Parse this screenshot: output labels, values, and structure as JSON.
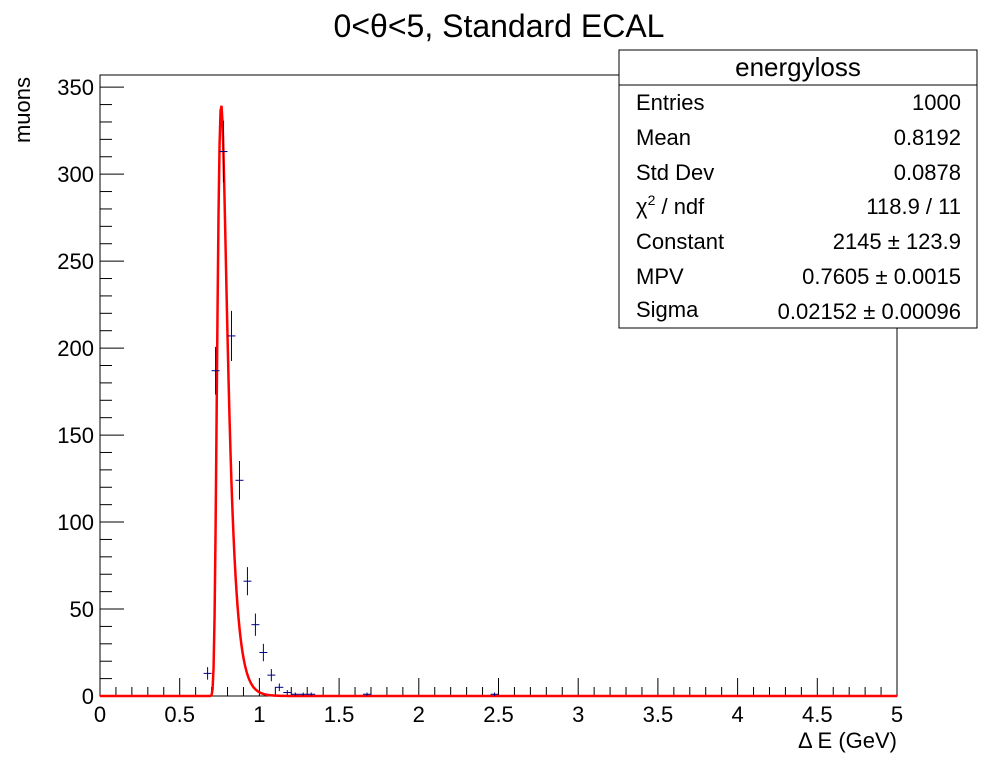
{
  "chart_data": {
    "type": "histogram",
    "title": "0<θ<5, Standard ECAL",
    "xlabel": "Δ E (GeV)",
    "ylabel": "muons",
    "xlim": [
      0,
      5
    ],
    "ylim": [
      0,
      357
    ],
    "x_ticks": [
      "0",
      "0.5",
      "1",
      "1.5",
      "2",
      "2.5",
      "3",
      "3.5",
      "4",
      "4.5",
      "5"
    ],
    "y_ticks": [
      "0",
      "50",
      "100",
      "150",
      "200",
      "250",
      "300",
      "350"
    ],
    "bin_width": 0.05,
    "data_points": [
      {
        "x": 0.675,
        "y": 13,
        "err": 3.6
      },
      {
        "x": 0.725,
        "y": 187,
        "err": 13.7
      },
      {
        "x": 0.775,
        "y": 313,
        "err": 17.7
      },
      {
        "x": 0.825,
        "y": 207,
        "err": 14.4
      },
      {
        "x": 0.875,
        "y": 124,
        "err": 11.1
      },
      {
        "x": 0.925,
        "y": 66,
        "err": 8.1
      },
      {
        "x": 0.975,
        "y": 41,
        "err": 6.4
      },
      {
        "x": 1.025,
        "y": 25,
        "err": 5.0
      },
      {
        "x": 1.075,
        "y": 12,
        "err": 3.5
      },
      {
        "x": 1.125,
        "y": 5,
        "err": 2.2
      },
      {
        "x": 1.175,
        "y": 2,
        "err": 1.4
      },
      {
        "x": 1.225,
        "y": 1,
        "err": 1.0
      },
      {
        "x": 1.275,
        "y": 1,
        "err": 1.0
      },
      {
        "x": 1.325,
        "y": 1,
        "err": 1.0
      },
      {
        "x": 1.675,
        "y": 1,
        "err": 1.0
      },
      {
        "x": 2.475,
        "y": 1,
        "err": 1.0
      }
    ],
    "fit_curve": {
      "function": "landau",
      "constant": 2145,
      "mpv": 0.7605,
      "sigma": 0.02152,
      "color": "#ff0000",
      "x_range": [
        0,
        5
      ]
    },
    "colors": {
      "data": "#000080",
      "fit": "#ff0000",
      "axis": "#000000",
      "background": "#ffffff"
    }
  },
  "stats_box": {
    "title": "energyloss",
    "rows": [
      {
        "label": "Entries",
        "value": "1000"
      },
      {
        "label": "Mean",
        "value": "0.8192"
      },
      {
        "label": "Std Dev",
        "value": "0.0878"
      },
      {
        "label": "χ",
        "label_sup": "2",
        "label_rest": " / ndf",
        "value": "118.9 / 11"
      },
      {
        "label": "Constant",
        "value": "2145 ± 123.9"
      },
      {
        "label": "MPV",
        "value": "0.7605 ± 0.0015"
      },
      {
        "label": "Sigma",
        "value": "0.02152 ± 0.00096"
      }
    ]
  }
}
